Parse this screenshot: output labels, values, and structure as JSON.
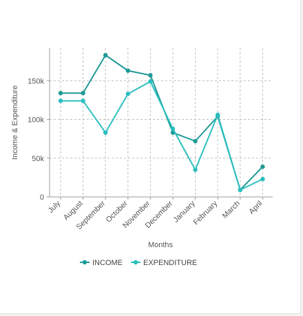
{
  "chart_data": {
    "type": "line",
    "categories": [
      "July",
      "August",
      "September",
      "October",
      "November",
      "December",
      "January",
      "February",
      "March",
      "April"
    ],
    "series": [
      {
        "name": "INCOME",
        "color": "#1e9a96",
        "values": [
          134000,
          134000,
          183000,
          163000,
          157000,
          83000,
          72000,
          104000,
          9000,
          39000
        ]
      },
      {
        "name": "EXPENDITURE",
        "color": "#2bbfc0",
        "values": [
          124000,
          124000,
          83000,
          133000,
          149000,
          88000,
          35000,
          106000,
          9000,
          23000
        ]
      }
    ],
    "xlabel": "Months",
    "ylabel": "Income & Expenditure",
    "yticks": [
      {
        "value": 0,
        "label": "0"
      },
      {
        "value": 50000,
        "label": "50k"
      },
      {
        "value": 100000,
        "label": "100k"
      },
      {
        "value": 150000,
        "label": "150k"
      }
    ],
    "ylim": [
      0,
      192000
    ],
    "grid": true,
    "legend_position": "bottom"
  }
}
